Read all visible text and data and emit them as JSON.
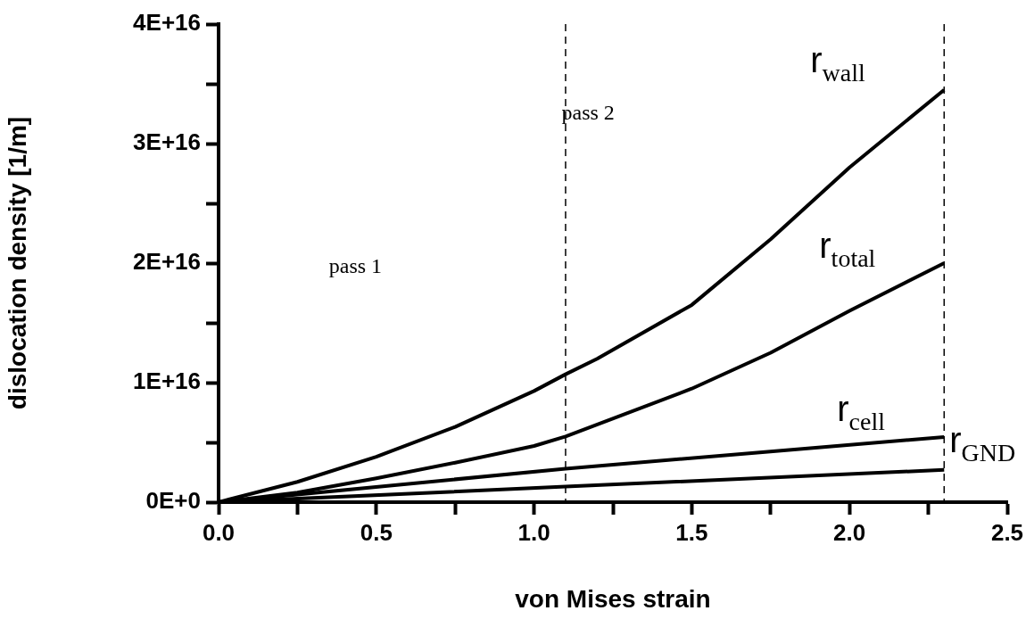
{
  "chart_data": {
    "type": "line",
    "xlabel": "von Mises strain",
    "ylabel": "dislocation density [1/m]",
    "xlim": [
      0,
      2.5
    ],
    "ylim": [
      0,
      4e+16
    ],
    "xticks": [
      {
        "value": 0,
        "label": "0.0"
      },
      {
        "value": 0.25,
        "label": null
      },
      {
        "value": 0.5,
        "label": "0.5"
      },
      {
        "value": 0.75,
        "label": null
      },
      {
        "value": 1,
        "label": "1.0"
      },
      {
        "value": 1.25,
        "label": null
      },
      {
        "value": 1.5,
        "label": "1.5"
      },
      {
        "value": 1.75,
        "label": null
      },
      {
        "value": 2,
        "label": "2.0"
      },
      {
        "value": 2.25,
        "label": null
      },
      {
        "value": 2.5,
        "label": "2.5"
      }
    ],
    "yticks": [
      {
        "value": 0,
        "label": "0E+0"
      },
      {
        "value": 5000000000000000.0,
        "label": null
      },
      {
        "value": 1e+16,
        "label": "1E+16"
      },
      {
        "value": 1.5e+16,
        "label": null
      },
      {
        "value": 2e+16,
        "label": "2E+16"
      },
      {
        "value": 2.5e+16,
        "label": null
      },
      {
        "value": 3e+16,
        "label": "3E+16"
      },
      {
        "value": 3.5e+16,
        "label": null
      },
      {
        "value": 4e+16,
        "label": "4E+16"
      }
    ],
    "grid": false,
    "legend": false,
    "marker": "none",
    "line_style": "solid",
    "ref_lines": [
      {
        "axis": "x",
        "value": 1.1,
        "line_style": "dashed",
        "color": "#000000"
      },
      {
        "axis": "x",
        "value": 2.3,
        "line_style": "dashed",
        "color": "#000000"
      }
    ],
    "annotations": [
      "pass 1",
      "pass 2"
    ],
    "series": [
      {
        "name": "r$_{wall}$",
        "color": "#000000",
        "x": [
          0,
          0.25,
          0.5,
          0.75,
          1.0,
          1.1,
          1.2,
          1.5,
          1.75,
          2.0,
          2.3
        ],
        "values": [
          0,
          1700000000000000.0,
          3800000000000000.0,
          6300000000000000.0,
          9300000000000000.0,
          1.07e+16,
          1.2e+16,
          1.65e+16,
          2.2e+16,
          2.8e+16,
          3.45e+16
        ]
      },
      {
        "name": "r$_{total}$",
        "color": "#000000",
        "x": [
          0,
          0.25,
          0.5,
          0.75,
          1.0,
          1.1,
          1.5,
          1.75,
          2.0,
          2.3
        ],
        "values": [
          0,
          800000000000000.0,
          2000000000000000.0,
          3300000000000000.0,
          4700000000000000.0,
          5500000000000000.0,
          9500000000000000.0,
          1.25e+16,
          1.6e+16,
          2e+16
        ]
      },
      {
        "name": "r$_{cell}$",
        "color": "#000000",
        "x": [
          0,
          1.1,
          2.3
        ],
        "values": [
          0,
          2800000000000000.0,
          5450000000000000.0
        ]
      },
      {
        "name": "r$_{GND}$",
        "color": "#000000",
        "x": [
          0,
          1.1,
          2.3
        ],
        "values": [
          0,
          1300000000000000.0,
          2700000000000000.0
        ]
      }
    ]
  }
}
